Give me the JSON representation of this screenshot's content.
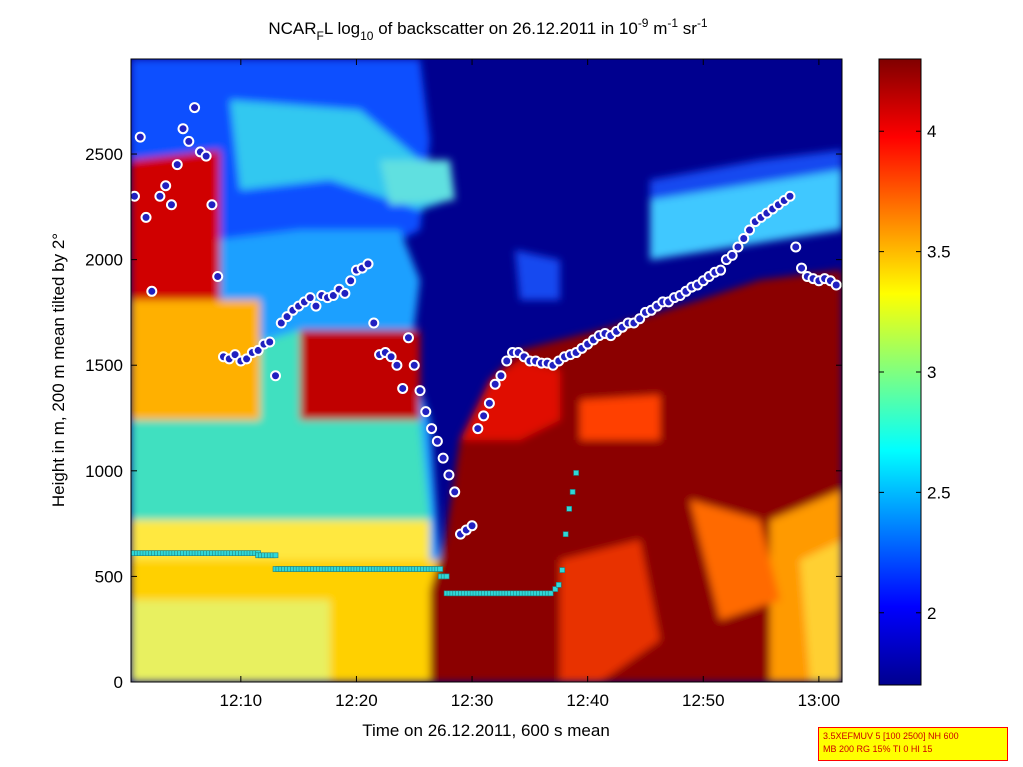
{
  "chart_data": {
    "type": "heatmap",
    "title": {
      "main": "NCAR",
      "main_sub": "F",
      "main2": "L log",
      "log_sub": "10",
      "rest": " of backscatter on 26.12.2011 in 10",
      "exp1": "-9",
      "unit1": " m",
      "exp2": "-1",
      "unit2": " sr",
      "exp3": "-1"
    },
    "xlabel": "Time on 26.12.2011, 600 s mean",
    "ylabel": "Height in m, 200 m mean tilted by 2°",
    "x_tick_labels": [
      "12:10",
      "12:20",
      "12:30",
      "12:40",
      "12:50",
      "13:00"
    ],
    "x_ticks_min": [
      9.5,
      19.5,
      29.5,
      39.5,
      49.5,
      59.5
    ],
    "xlim_min": [
      0,
      61.5
    ],
    "y_ticks": [
      0,
      500,
      1000,
      1500,
      2000,
      2500
    ],
    "ylim": [
      0,
      2950
    ],
    "colorbar": {
      "ticks": [
        2,
        2.5,
        3,
        3.5,
        4
      ],
      "tick_labels": [
        "2",
        "2.5",
        "3",
        "3.5",
        "4"
      ],
      "range": [
        1.7,
        4.3
      ],
      "colormap": "jet"
    },
    "cloud_base_series": {
      "marker": "circle",
      "fill": "#2020c0",
      "edge": "#ffffff",
      "x": [
        0.3,
        0.8,
        1.3,
        1.8,
        2.5,
        3,
        3.5,
        4,
        4.5,
        5,
        5.5,
        6,
        6.5,
        7,
        7.5,
        8,
        8.5,
        9,
        9.5,
        10,
        10.5,
        11,
        11.5,
        12,
        12.5,
        13,
        13.5,
        14,
        14.5,
        15,
        15.5,
        16,
        16.5,
        17,
        17.5,
        18,
        18.5,
        19,
        19.5,
        20,
        20.5,
        21,
        21.5,
        22,
        22.5,
        23,
        23.5,
        24,
        24.5,
        25,
        25.5,
        26,
        26.5,
        27,
        27.5,
        28,
        28.5,
        29,
        29.5,
        30,
        30.5,
        31,
        31.5,
        32,
        32.5,
        33,
        33.5,
        34,
        34.5,
        35,
        35.5,
        36,
        36.5,
        37,
        37.5,
        38,
        38.5,
        39,
        39.5,
        40,
        40.5,
        41,
        41.5,
        42,
        42.5,
        43,
        43.5,
        44,
        44.5,
        45,
        45.5,
        46,
        46.5,
        47,
        47.5,
        48,
        48.5,
        49,
        49.5,
        50,
        50.5,
        51,
        51.5,
        52,
        52.5,
        53,
        53.5,
        54,
        54.5,
        55,
        55.5,
        56,
        56.5,
        57,
        57.5,
        58,
        58.5,
        59,
        59.5,
        60,
        60.5,
        61
      ],
      "y": [
        2300,
        2580,
        2200,
        1850,
        2300,
        2350,
        2260,
        2450,
        2620,
        2560,
        2720,
        2510,
        2490,
        2260,
        1920,
        1540,
        1530,
        1550,
        1520,
        1530,
        1560,
        1570,
        1600,
        1610,
        1450,
        1700,
        1730,
        1760,
        1780,
        1800,
        1820,
        1780,
        1830,
        1820,
        1830,
        1860,
        1840,
        1900,
        1950,
        1960,
        1980,
        1700,
        1550,
        1560,
        1540,
        1500,
        1390,
        1630,
        1500,
        1380,
        1280,
        1200,
        1140,
        1060,
        980,
        900,
        700,
        720,
        740,
        1200,
        1260,
        1320,
        1410,
        1450,
        1520,
        1560,
        1560,
        1540,
        1520,
        1520,
        1510,
        1510,
        1500,
        1520,
        1540,
        1550,
        1560,
        1580,
        1600,
        1620,
        1640,
        1650,
        1640,
        1660,
        1680,
        1700,
        1700,
        1720,
        1750,
        1760,
        1780,
        1800,
        1800,
        1820,
        1830,
        1850,
        1870,
        1880,
        1900,
        1920,
        1940,
        1950,
        2000,
        2020,
        2060,
        2100,
        2140,
        2180,
        2200,
        2220,
        2240,
        2260,
        2280,
        2300,
        2060,
        1960,
        1920,
        1910,
        1900,
        1910,
        1900,
        1880
      ]
    },
    "mixing_layer_series": {
      "marker": "square",
      "fill": "#30d8d8",
      "edge": "#208080",
      "x_start": 0,
      "x_end": 37.8,
      "segments": [
        {
          "x": [
            0,
            11
          ],
          "y": 610
        },
        {
          "x": [
            11,
            12.5
          ],
          "y": 600
        },
        {
          "x": [
            12.5,
            26.8
          ],
          "y": 535
        },
        {
          "x": [
            26.8,
            27.3
          ],
          "y": 500
        },
        {
          "x": [
            27.3,
            36.5
          ],
          "y": 420
        }
      ],
      "tail_x": [
        36.7,
        37.0,
        37.3,
        37.6,
        37.9,
        38.2,
        38.5
      ],
      "tail_y": [
        440,
        460,
        530,
        700,
        820,
        900,
        990
      ]
    }
  },
  "annotation": {
    "line1": "3.5XEFMUV 5 [100 2500] NH 600",
    "line2": "MB 200 RG 15% TI 0 HI 15"
  },
  "colors": {
    "background": "#ffffff",
    "axis": "#000000",
    "annot_bg": "#ffff00",
    "annot_border": "#ff0000",
    "annot_text": "#cc0000"
  }
}
